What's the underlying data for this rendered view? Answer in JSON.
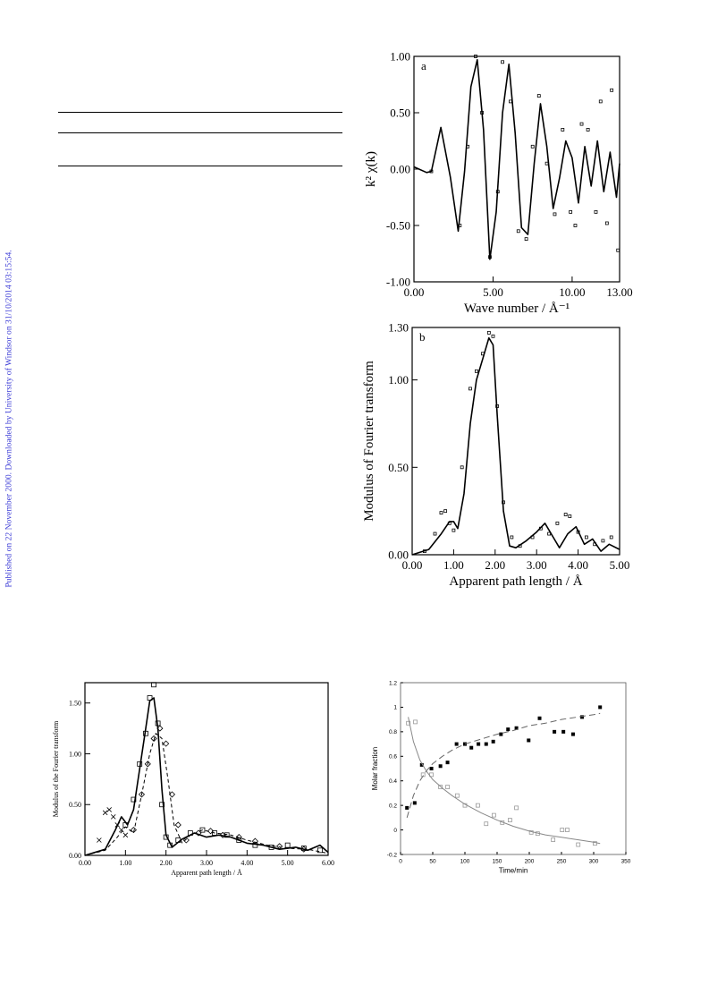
{
  "sidebar": {
    "text": "Published on 22 November 2000. Downloaded by University of Windsor on 31/10/2014 03:15:54."
  },
  "chart_data": [
    {
      "id": "fig_a",
      "type": "line",
      "panel_label": "a",
      "xlabel": "Wave number / Å⁻¹",
      "ylabel": "k² χ(k)",
      "xlim": [
        0,
        13
      ],
      "ylim": [
        -1,
        1
      ],
      "xticks": [
        "0.00",
        "5.00",
        "10.00",
        "13.00"
      ],
      "yticks": [
        "1.00",
        "0.50",
        "0.00",
        "-0.50",
        "-1.00"
      ],
      "series": [
        {
          "style": "line",
          "x": [
            0,
            0.8,
            1.1,
            1.7,
            2.3,
            2.8,
            3.2,
            3.6,
            4.0,
            4.4,
            4.8,
            5.2,
            5.6,
            6.0,
            6.4,
            6.8,
            7.2,
            7.6,
            8.0,
            8.4,
            8.8,
            9.2,
            9.6,
            10.0,
            10.4,
            10.8,
            11.2,
            11.6,
            12.0,
            12.4,
            12.8,
            13.0
          ],
          "y": [
            0.02,
            -0.03,
            -0.02,
            0.37,
            -0.07,
            -0.55,
            -0.02,
            0.73,
            0.97,
            0.35,
            -0.8,
            -0.38,
            0.5,
            0.93,
            0.32,
            -0.52,
            -0.58,
            0.05,
            0.58,
            0.2,
            -0.35,
            -0.08,
            0.25,
            0.1,
            -0.3,
            0.2,
            -0.15,
            0.25,
            -0.2,
            0.15,
            -0.25,
            0.05
          ]
        },
        {
          "style": "points",
          "x": [
            1.1,
            2.9,
            3.4,
            3.9,
            4.3,
            4.8,
            5.3,
            5.6,
            6.1,
            6.6,
            7.1,
            7.5,
            7.9,
            8.4,
            8.9,
            9.4,
            9.9,
            10.2,
            10.6,
            11.0,
            11.5,
            11.8,
            12.2,
            12.5,
            12.9
          ],
          "y": [
            -0.02,
            -0.5,
            0.2,
            1.0,
            0.5,
            -0.78,
            -0.2,
            0.95,
            0.6,
            -0.55,
            -0.62,
            0.2,
            0.65,
            0.05,
            -0.4,
            0.35,
            -0.38,
            -0.5,
            0.4,
            0.35,
            -0.38,
            0.6,
            -0.48,
            0.7,
            -0.72
          ]
        }
      ]
    },
    {
      "id": "fig_b",
      "type": "line",
      "panel_label": "b",
      "xlabel": "Apparent path length / Å",
      "ylabel": "Modulus of Fourier transform",
      "xlim": [
        0,
        5
      ],
      "ylim": [
        0,
        1.3
      ],
      "xticks": [
        "0.00",
        "1.00",
        "2.00",
        "3.00",
        "4.00",
        "5.00"
      ],
      "yticks": [
        "1.30",
        "1.00",
        "0.50",
        "0.00"
      ],
      "series": [
        {
          "style": "line",
          "x": [
            0,
            0.4,
            0.7,
            0.9,
            1.0,
            1.1,
            1.25,
            1.4,
            1.55,
            1.7,
            1.85,
            1.95,
            2.05,
            2.2,
            2.35,
            2.5,
            2.75,
            3.0,
            3.2,
            3.4,
            3.55,
            3.75,
            3.95,
            4.15,
            4.35,
            4.55,
            4.75,
            5.0
          ],
          "y": [
            0,
            0.03,
            0.12,
            0.19,
            0.19,
            0.15,
            0.35,
            0.75,
            1.0,
            1.12,
            1.24,
            1.2,
            0.8,
            0.25,
            0.05,
            0.04,
            0.08,
            0.13,
            0.18,
            0.1,
            0.04,
            0.12,
            0.16,
            0.06,
            0.09,
            0.02,
            0.06,
            0.03
          ]
        },
        {
          "style": "points",
          "x": [
            0.3,
            0.55,
            0.7,
            0.8,
            0.9,
            1.0,
            1.2,
            1.4,
            1.55,
            1.7,
            1.85,
            1.95,
            2.05,
            2.2,
            2.4,
            2.6,
            2.9,
            3.1,
            3.3,
            3.5,
            3.7,
            3.8,
            4.0,
            4.2,
            4.4,
            4.6,
            4.8
          ],
          "y": [
            0.02,
            0.12,
            0.24,
            0.25,
            0.18,
            0.14,
            0.5,
            0.95,
            1.05,
            1.15,
            1.27,
            1.25,
            0.85,
            0.3,
            0.1,
            0.05,
            0.1,
            0.15,
            0.12,
            0.18,
            0.23,
            0.22,
            0.13,
            0.1,
            0.06,
            0.08,
            0.1
          ]
        }
      ]
    },
    {
      "id": "fig_c",
      "type": "line",
      "xlabel": "Apparent path length / Å",
      "ylabel": "Modulus of the Fourier transform",
      "xlim": [
        0,
        6
      ],
      "ylim": [
        0,
        1.7
      ],
      "xticks": [
        "0.00",
        "1.00",
        "2.00",
        "3.00",
        "4.00",
        "5.00",
        "6.00"
      ],
      "yticks": [
        "1.50",
        "1.00",
        "0.50",
        "0.00"
      ],
      "series": [
        {
          "style": "line",
          "x": [
            0,
            0.5,
            0.75,
            0.9,
            1.05,
            1.2,
            1.35,
            1.5,
            1.6,
            1.7,
            1.8,
            1.9,
            2.0,
            2.15,
            2.4,
            2.7,
            3.0,
            3.3,
            3.6,
            4.0,
            4.4,
            4.8,
            5.2,
            5.5,
            5.8,
            6.0
          ],
          "y": [
            0,
            0.06,
            0.25,
            0.38,
            0.3,
            0.45,
            0.85,
            1.25,
            1.52,
            1.55,
            1.25,
            0.65,
            0.2,
            0.08,
            0.16,
            0.22,
            0.18,
            0.2,
            0.18,
            0.12,
            0.1,
            0.06,
            0.08,
            0.05,
            0.1,
            0.03
          ]
        },
        {
          "style": "dashed",
          "x": [
            0,
            0.5,
            0.8,
            1.0,
            1.2,
            1.4,
            1.6,
            1.75,
            1.9,
            2.05,
            2.2,
            2.4,
            2.6,
            2.9,
            3.2,
            3.6,
            4.0,
            4.5,
            5.0,
            5.5,
            6.0
          ],
          "y": [
            0,
            0.05,
            0.18,
            0.28,
            0.22,
            0.6,
            1.0,
            1.2,
            1.15,
            0.75,
            0.3,
            0.12,
            0.2,
            0.25,
            0.22,
            0.2,
            0.15,
            0.1,
            0.07,
            0.06,
            0.02
          ]
        },
        {
          "style": "squares",
          "x": [
            1.0,
            1.2,
            1.35,
            1.5,
            1.6,
            1.7,
            1.8,
            1.9,
            2.0,
            2.1,
            2.3,
            2.6,
            2.9,
            3.2,
            3.5,
            3.8,
            4.2,
            4.6,
            5.0,
            5.4,
            5.8
          ],
          "y": [
            0.3,
            0.55,
            0.9,
            1.2,
            1.55,
            1.68,
            1.3,
            0.5,
            0.18,
            0.1,
            0.15,
            0.22,
            0.25,
            0.22,
            0.2,
            0.15,
            0.1,
            0.08,
            0.1,
            0.07,
            0.05
          ]
        },
        {
          "style": "diamonds",
          "x": [
            1.2,
            1.4,
            1.55,
            1.7,
            1.85,
            2.0,
            2.15,
            2.3,
            2.5,
            2.8,
            3.1,
            3.4,
            3.8,
            4.2,
            4.8,
            5.4
          ],
          "y": [
            0.25,
            0.6,
            0.9,
            1.15,
            1.25,
            1.1,
            0.6,
            0.3,
            0.15,
            0.22,
            0.24,
            0.2,
            0.18,
            0.14,
            0.09,
            0.06
          ]
        },
        {
          "style": "crosses",
          "x": [
            0.35,
            0.5,
            0.6,
            0.7,
            0.8,
            0.9,
            1.0
          ],
          "y": [
            0.15,
            0.42,
            0.45,
            0.38,
            0.3,
            0.25,
            0.2
          ]
        }
      ]
    },
    {
      "id": "fig_d",
      "type": "scatter",
      "xlabel": "Time/min",
      "ylabel": "Molar fraction",
      "xlim": [
        0,
        350
      ],
      "ylim": [
        -0.2,
        1.2
      ],
      "xticks": [
        "0",
        "50",
        "100",
        "150",
        "200",
        "250",
        "300",
        "350"
      ],
      "yticks": [
        "1.2",
        "1",
        "0.8",
        "0.6",
        "0.4",
        "0.2",
        "0",
        "-0.2"
      ],
      "series": [
        {
          "style": "filled",
          "x": [
            10,
            22,
            33,
            48,
            62,
            73,
            87,
            100,
            110,
            121,
            133,
            144,
            156,
            167,
            180,
            199,
            216,
            239,
            253,
            268,
            282,
            310
          ],
          "y": [
            0.18,
            0.22,
            0.53,
            0.5,
            0.52,
            0.55,
            0.7,
            0.7,
            0.67,
            0.7,
            0.7,
            0.72,
            0.78,
            0.82,
            0.83,
            0.73,
            0.91,
            0.8,
            0.8,
            0.78,
            0.92,
            1.0
          ]
        },
        {
          "style": "open",
          "x": [
            12,
            23,
            35,
            48,
            62,
            73,
            88,
            100,
            120,
            133,
            145,
            158,
            170,
            180,
            203,
            213,
            237,
            251,
            259,
            276,
            302
          ],
          "y": [
            0.87,
            0.88,
            0.45,
            0.45,
            0.35,
            0.35,
            0.28,
            0.2,
            0.2,
            0.05,
            0.12,
            0.06,
            0.08,
            0.18,
            -0.02,
            -0.03,
            -0.08,
            0.0,
            0.0,
            -0.12,
            -0.11
          ]
        },
        {
          "style": "dashed-fit",
          "x": [
            10,
            20,
            30,
            40,
            50,
            65,
            80,
            100,
            125,
            150,
            175,
            200,
            225,
            250,
            275,
            300,
            310
          ],
          "y": [
            0.1,
            0.28,
            0.4,
            0.48,
            0.54,
            0.6,
            0.65,
            0.7,
            0.74,
            0.78,
            0.81,
            0.85,
            0.87,
            0.9,
            0.92,
            0.94,
            0.95
          ]
        },
        {
          "style": "solid-fit",
          "x": [
            12,
            20,
            30,
            40,
            50,
            65,
            80,
            100,
            125,
            150,
            175,
            200,
            225,
            250,
            275,
            300,
            310
          ],
          "y": [
            0.92,
            0.72,
            0.57,
            0.48,
            0.41,
            0.34,
            0.28,
            0.21,
            0.14,
            0.08,
            0.03,
            -0.01,
            -0.04,
            -0.06,
            -0.08,
            -0.1,
            -0.11
          ]
        }
      ]
    }
  ]
}
